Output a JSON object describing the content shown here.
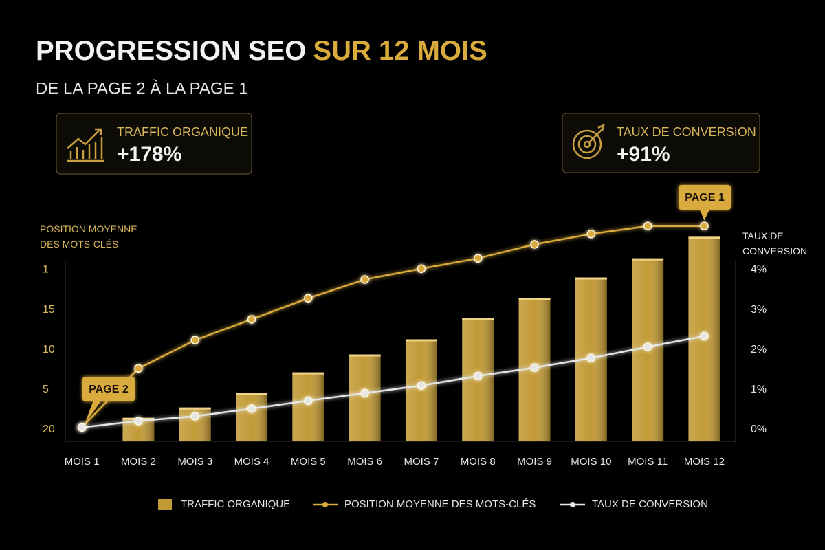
{
  "chart_data": {
    "type": "combo",
    "title": "PROGRESSION SEO",
    "title_highlight": "SUR 12 MOIS",
    "subtitle": "DE LA PAGE 2 À LA PAGE 1",
    "cards": [
      {
        "label": "TRAFFIC ORGANIQUE",
        "value": "+178%"
      },
      {
        "label": "TAUX DE CONVERSION",
        "value": "+91%"
      }
    ],
    "annotations": [
      "PAGE 2",
      "PAGE 1"
    ],
    "ylabel": "POSITION MOYENNE DES MOTS-CLÉS",
    "y2label": "TAUX DE CONVERSION",
    "categories": [
      "MOIS 1",
      "MOIS 2",
      "MOIS 3",
      "MOIS 4",
      "MOIS 5",
      "MOIS 6",
      "MOIS 7",
      "MOIS 8",
      "MOIS 9",
      "MOIS 10",
      "MOIS 11",
      "MOIS 12"
    ],
    "ylim": [
      -0.3,
      5.25
    ],
    "yticks": [
      {
        "value": 4,
        "label": "1"
      },
      {
        "value": 3,
        "label": "15"
      },
      {
        "value": 2,
        "label": "10"
      },
      {
        "value": 1,
        "label": "5"
      },
      {
        "value": 0,
        "label": "20"
      }
    ],
    "y2lim": [
      -0.3,
      5.25
    ],
    "y2ticks": [
      {
        "value": 4,
        "label": "4%"
      },
      {
        "value": 3,
        "label": "3%"
      },
      {
        "value": 2,
        "label": "2%"
      },
      {
        "value": 1,
        "label": "1%"
      },
      {
        "value": 0,
        "label": "0%"
      }
    ],
    "series": [
      {
        "name": "TRAFFIC ORGANIQUE",
        "type": "bar",
        "color": "#c29a35",
        "values": [
          null,
          0.29,
          0.55,
          0.91,
          1.43,
          1.88,
          2.26,
          2.79,
          3.29,
          3.81,
          4.29,
          4.83
        ]
      },
      {
        "name": "POSITION MOYENNE DES MOTS-CLÉS",
        "type": "line",
        "color": "#d9aa3c",
        "values": [
          0.05,
          1.53,
          2.24,
          2.76,
          3.29,
          3.76,
          4.03,
          4.29,
          4.64,
          4.9,
          5.1,
          5.1
        ]
      },
      {
        "name": "TAUX DE CONVERSION",
        "type": "line",
        "color": "#e6e6e6",
        "axis": "y2",
        "values": [
          0.05,
          0.21,
          0.33,
          0.52,
          0.72,
          0.91,
          1.1,
          1.34,
          1.55,
          1.79,
          2.07,
          2.34
        ]
      }
    ]
  }
}
